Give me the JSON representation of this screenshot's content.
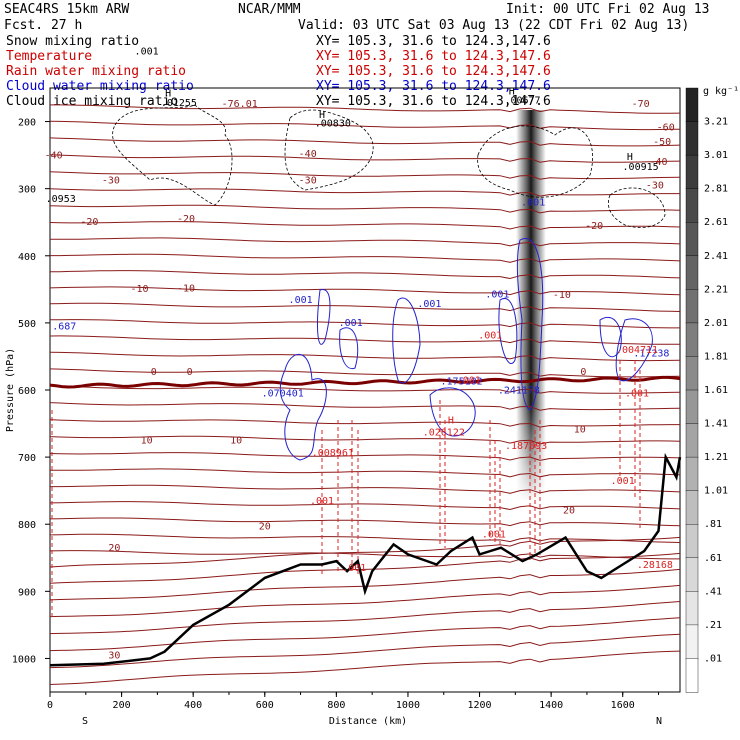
{
  "header": {
    "model": "SEAC4RS 15km ARW",
    "forecast": "Fcst.     27 h",
    "org": "NCAR/MMM",
    "init": "Init: 00 UTC Fri 02 Aug 13",
    "valid": "Valid: 03 UTC Sat 03 Aug 13 (22 CDT Fri 02 Aug 13)"
  },
  "legend": [
    {
      "name": "Snow mixing ratio",
      "xy": "XY= 105.3, 31.6 to 124.3,147.6",
      "color": "#000000"
    },
    {
      "name": "Temperature",
      "xy": "XY= 105.3, 31.6 to 124.3,147.6",
      "color": "#cc0000"
    },
    {
      "name": "Rain water mixing ratio",
      "xy": "XY= 105.3, 31.6 to 124.3,147.6",
      "color": "#cc0000"
    },
    {
      "name": "Cloud water mixing ratio",
      "xy": "XY= 105.3, 31.6 to 124.3,147.6",
      "color": "#0000cc"
    },
    {
      "name": "Cloud ice mixing ratio",
      "xy": "XY= 105.3, 31.6 to 124.3,147.6",
      "color": "#000000"
    }
  ],
  "colorbar": {
    "unit": "g kg⁻¹",
    "labels": [
      "3.21",
      "3.01",
      "2.81",
      "2.61",
      "2.41",
      "2.21",
      "2.01",
      "1.81",
      "1.61",
      "1.41",
      "1.21",
      "1.01",
      ".81",
      ".61",
      ".41",
      ".21",
      ".01"
    ]
  },
  "chart_data": {
    "type": "cross-section",
    "xlabel": "Distance (km)",
    "ylabel": "Pressure (hPa)",
    "xlim": [
      0,
      1760
    ],
    "ylim": [
      150,
      1050
    ],
    "xticks": [
      "0",
      "200",
      "400",
      "600",
      "800",
      "1000",
      "1200",
      "1400",
      "1600"
    ],
    "yticks": [
      "200",
      "300",
      "400",
      "500",
      "600",
      "700",
      "800",
      "900",
      "1000"
    ],
    "x_end_labels": {
      "left": "S",
      "right": "N"
    },
    "temperature_labels": [
      {
        "text": "-76.01",
        "x": 530,
        "p": 178
      },
      {
        "text": "-70",
        "x": 1650,
        "p": 178
      },
      {
        "text": "-60",
        "x": 1720,
        "p": 213
      },
      {
        "text": "-50",
        "x": 1710,
        "p": 235
      },
      {
        "text": "-40",
        "x": 10,
        "p": 255
      },
      {
        "text": "-40",
        "x": 720,
        "p": 253
      },
      {
        "text": "-40",
        "x": 1700,
        "p": 265
      },
      {
        "text": "-30",
        "x": 170,
        "p": 292
      },
      {
        "text": "-30",
        "x": 720,
        "p": 292
      },
      {
        "text": "-30",
        "x": 1690,
        "p": 300
      },
      {
        "text": "-20",
        "x": 110,
        "p": 354
      },
      {
        "text": "-20",
        "x": 380,
        "p": 350
      },
      {
        "text": "-20",
        "x": 1520,
        "p": 360
      },
      {
        "text": "-10",
        "x": 250,
        "p": 454
      },
      {
        "text": "-10",
        "x": 380,
        "p": 453
      },
      {
        "text": "-10",
        "x": 1430,
        "p": 463
      },
      {
        "text": "0",
        "x": 290,
        "p": 578
      },
      {
        "text": "0",
        "x": 390,
        "p": 578
      },
      {
        "text": "0",
        "x": 1490,
        "p": 578
      },
      {
        "text": "10",
        "x": 270,
        "p": 680
      },
      {
        "text": "10",
        "x": 520,
        "p": 680
      },
      {
        "text": "10",
        "x": 1480,
        "p": 663
      },
      {
        "text": "20",
        "x": 600,
        "p": 808
      },
      {
        "text": "20",
        "x": 1450,
        "p": 784
      },
      {
        "text": "20",
        "x": 180,
        "p": 840
      },
      {
        "text": "30",
        "x": 180,
        "p": 1000
      }
    ],
    "cloud_water_labels": [
      {
        "text": ".001",
        "x": 700,
        "p": 470
      },
      {
        "text": ".001",
        "x": 840,
        "p": 505
      },
      {
        "text": ".001",
        "x": 1060,
        "p": 476
      },
      {
        "text": ".001",
        "x": 1250,
        "p": 462
      },
      {
        "text": ".001",
        "x": 1350,
        "p": 325
      },
      {
        "text": ".070401",
        "x": 650,
        "p": 610
      },
      {
        "text": ".175182",
        "x": 1150,
        "p": 592
      },
      {
        "text": ".241178",
        "x": 1310,
        "p": 605
      },
      {
        "text": ".17238",
        "x": 1680,
        "p": 550
      },
      {
        "text": ".687",
        "x": 40,
        "p": 510
      }
    ],
    "rain_labels": [
      {
        "text": "H",
        "x": 1120,
        "p": 650
      },
      {
        "text": ".026122",
        "x": 1100,
        "p": 668
      },
      {
        "text": ".008961",
        "x": 790,
        "p": 698
      },
      {
        "text": ".004711",
        "x": 1640,
        "p": 545
      },
      {
        "text": ".001",
        "x": 760,
        "p": 770
      },
      {
        "text": ".001",
        "x": 1170,
        "p": 590
      },
      {
        "text": ".001",
        "x": 1230,
        "p": 523
      },
      {
        "text": ".001",
        "x": 1640,
        "p": 610
      },
      {
        "text": ".001",
        "x": 1600,
        "p": 740
      },
      {
        "text": ".001",
        "x": 1240,
        "p": 820
      },
      {
        "text": ".001",
        "x": 850,
        "p": 870
      },
      {
        "text": ".187093",
        "x": 1330,
        "p": 688
      },
      {
        "text": ".28168",
        "x": 1690,
        "p": 865
      }
    ],
    "ice_labels": [
      {
        "text": ".001",
        "x": 270,
        "p": 100
      },
      {
        "text": "H",
        "x": 330,
        "p": 163
      },
      {
        "text": ".01255",
        "x": 360,
        "p": 177
      },
      {
        "text": "H",
        "x": 760,
        "p": 195
      },
      {
        "text": ".00830",
        "x": 790,
        "p": 207
      },
      {
        "text": "H",
        "x": 1290,
        "p": 160
      },
      {
        "text": ".00677",
        "x": 1320,
        "p": 173
      },
      {
        "text": "H",
        "x": 1620,
        "p": 257
      },
      {
        "text": ".00915",
        "x": 1650,
        "p": 272
      },
      {
        "text": ".0953",
        "x": 30,
        "p": 320
      }
    ]
  }
}
